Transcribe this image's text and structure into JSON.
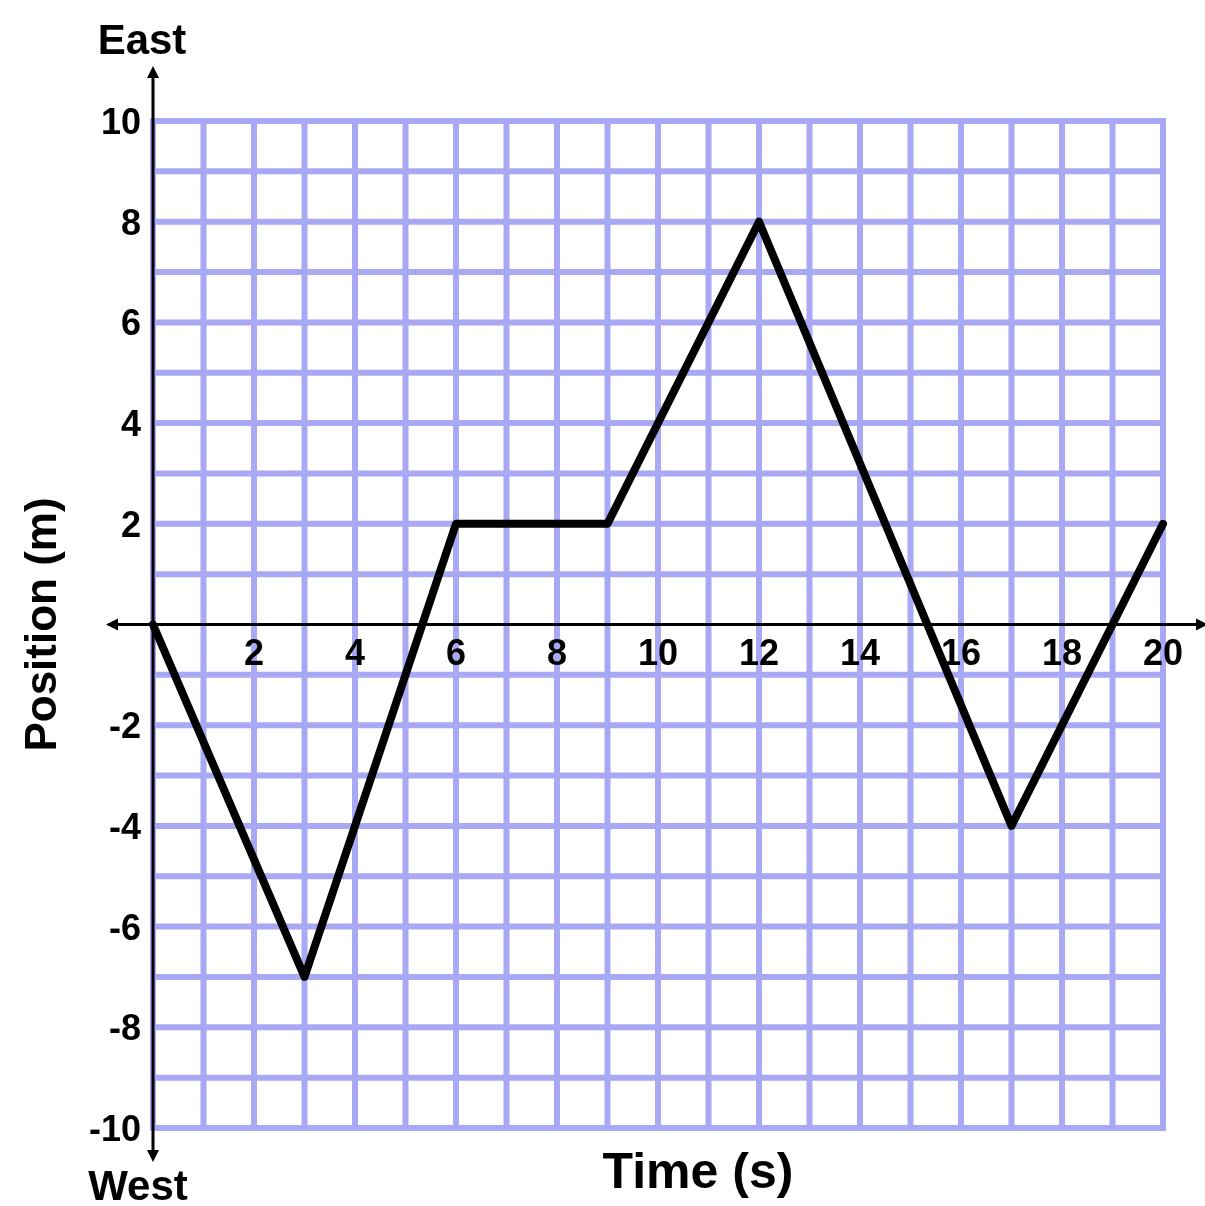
{
  "chart_data": {
    "type": "line",
    "xlabel": "Time (s)",
    "ylabel": "Position (m)",
    "x": [
      0,
      3,
      6,
      9,
      12,
      17,
      20
    ],
    "series": [
      {
        "color": "#000000",
        "values": [
          0,
          -7,
          2,
          2,
          8,
          -4,
          2
        ]
      }
    ],
    "xlim": [
      0,
      20
    ],
    "ylim": [
      -10,
      10
    ],
    "xticks": [
      {
        "value": 1,
        "label": null
      },
      2,
      {
        "value": 3,
        "label": null
      },
      4,
      {
        "value": 5,
        "label": null
      },
      6,
      {
        "value": 7,
        "label": null
      },
      8,
      {
        "value": 9,
        "label": null
      },
      10,
      {
        "value": 11,
        "label": null
      },
      12,
      {
        "value": 13,
        "label": null
      },
      14,
      {
        "value": 15,
        "label": null
      },
      16,
      {
        "value": 17,
        "label": null
      },
      18,
      {
        "value": 19,
        "label": null
      },
      20
    ],
    "yticks": [
      -10,
      {
        "value": -9,
        "label": null
      },
      -8,
      {
        "value": -7,
        "label": null
      },
      -6,
      {
        "value": -5,
        "label": null
      },
      -4,
      {
        "value": -3,
        "label": null
      },
      -2,
      {
        "value": -1,
        "label": null
      },
      {
        "value": 1,
        "label": null
      },
      2,
      {
        "value": 3,
        "label": null
      },
      4,
      {
        "value": 5,
        "label": null
      },
      6,
      {
        "value": 7,
        "label": null
      },
      8,
      {
        "value": 9,
        "label": null
      },
      10
    ],
    "grid": true,
    "marker": "none",
    "line_style": "solid",
    "annotations": [
      "East",
      "West"
    ]
  }
}
